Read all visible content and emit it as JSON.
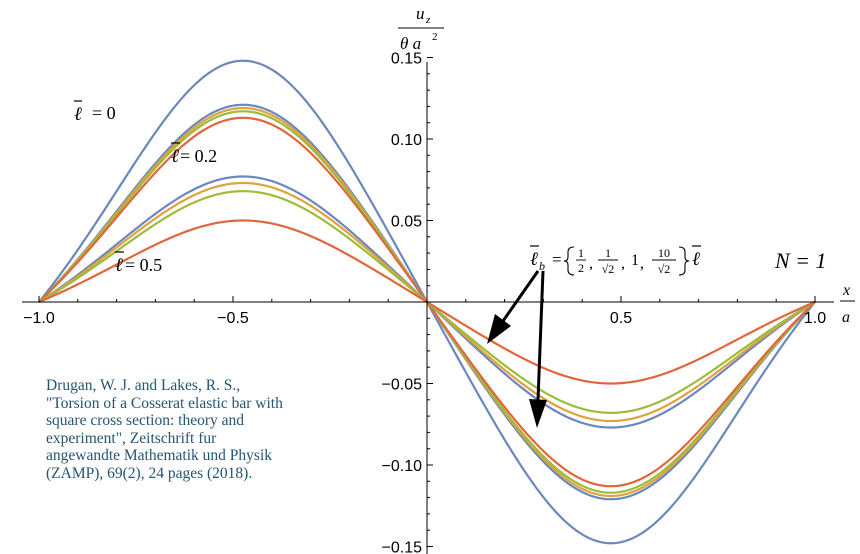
{
  "chart_data": {
    "type": "line",
    "title": "",
    "ylabel": {
      "numerator": "u",
      "numerator_sub": "z",
      "denominator": "θ a",
      "denominator_sup": "2"
    },
    "xlabel": {
      "numerator": "x",
      "denominator": "a"
    },
    "xlim": [
      -1.0,
      1.0
    ],
    "ylim": [
      -0.16,
      0.16
    ],
    "x_ticks": [
      -1.0,
      -0.5,
      0.5,
      1.0
    ],
    "x_tick_labels": [
      "−1.0",
      "−0.5",
      "0.5",
      "1.0"
    ],
    "y_ticks": [
      -0.15,
      -0.1,
      -0.05,
      0.05,
      0.1,
      0.15
    ],
    "y_tick_labels": [
      "−0.15",
      "−0.10",
      "−0.05",
      "0.05",
      "0.10",
      "0.15"
    ],
    "grid": false,
    "curve_shape": "sin(pi*x)*(1-0.32*x^2)*(1-0.075*cos(2*pi*x)), scaled so |peak| = amplitude",
    "curve_groups": [
      {
        "l_bar": 0,
        "series": [
          {
            "color": "#6b87bd",
            "amplitude": 0.148
          }
        ]
      },
      {
        "l_bar": 0.2,
        "series": [
          {
            "color": "#6b87bd",
            "amplitude": 0.121
          },
          {
            "color": "#e0a23c",
            "amplitude": 0.119
          },
          {
            "color": "#9cbc3a",
            "amplitude": 0.117
          },
          {
            "color": "#e2663c",
            "amplitude": 0.113
          }
        ]
      },
      {
        "l_bar": 0.5,
        "series": [
          {
            "color": "#6b87bd",
            "amplitude": 0.077
          },
          {
            "color": "#e0a23c",
            "amplitude": 0.073
          },
          {
            "color": "#9cbc3a",
            "amplitude": 0.068
          },
          {
            "color": "#e2663c",
            "amplitude": 0.05
          }
        ]
      }
    ],
    "annotations": {
      "l0": {
        "symbol": "ℓ",
        "text": "= 0"
      },
      "l02": {
        "symbol": "ℓ",
        "text": "= 0.2"
      },
      "l05": {
        "symbol": "ℓ",
        "text": "= 0.5"
      },
      "lb": {
        "symbol": "ℓ",
        "sub": "b",
        "eq": "=",
        "f1_num": "1",
        "f1_den": "2",
        "f2_num": "1",
        "f2_den": "√2",
        "one": "1",
        "f3_num": "10",
        "f3_den": "√2",
        "trail": "ℓ"
      },
      "n": "N = 1"
    }
  },
  "citation": {
    "lines": [
      "Drugan, W. J. and Lakes, R. S.,",
      "\"Torsion of a Cosserat elastic bar with",
      "square cross section: theory and",
      "experiment\", Zeitschrift fur",
      "angewandte Mathematik und Physik",
      "(ZAMP), 69(2), 24 pages (2018)."
    ]
  }
}
